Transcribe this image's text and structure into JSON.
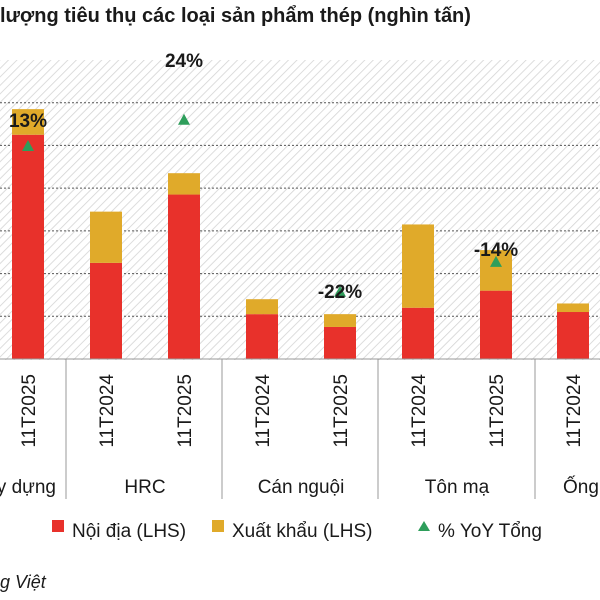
{
  "title": "lượng tiêu thụ các loại sản phẩm thép (nghìn tấn)",
  "source": "g Việt",
  "colors": {
    "domestic": "#e8312b",
    "export": "#e0aa2a",
    "yoy": "#2e9e5b",
    "hatch": "#d0d0d0",
    "grid": "#555555"
  },
  "chart_data": {
    "type": "bar",
    "stacked": true,
    "groups": [
      {
        "label": "y dựng",
        "categories": [
          "11T2025"
        ]
      },
      {
        "label": "HRC",
        "categories": [
          "11T2024",
          "11T2025"
        ]
      },
      {
        "label": "Cán nguội",
        "categories": [
          "11T2024",
          "11T2025"
        ]
      },
      {
        "label": "Tôn mạ",
        "categories": [
          "11T2024",
          "11T2025"
        ]
      },
      {
        "label": "Ống",
        "categories": [
          "11T2024"
        ]
      }
    ],
    "categories": [
      "11T2025",
      "11T2024",
      "11T2025",
      "11T2024",
      "11T2025",
      "11T2024",
      "11T2025",
      "11T2024"
    ],
    "series": [
      {
        "name": "Nội địa (LHS)",
        "values": [
          10500,
          4500,
          7700,
          2100,
          1500,
          2400,
          3200,
          2200
        ]
      },
      {
        "name": "Xuất khẩu (LHS)",
        "values": [
          1200,
          2400,
          1000,
          700,
          600,
          3900,
          1900,
          400
        ]
      }
    ],
    "yoy": {
      "name": "% YoY Tổng",
      "values": [
        null,
        null,
        0.24,
        null,
        -0.22,
        null,
        -0.14,
        null
      ],
      "labels": [
        "13%",
        "",
        "24%",
        "",
        "-22%",
        "",
        "-14%",
        ""
      ]
    },
    "ylim": [
      0,
      14000
    ],
    "grid_step": 2000,
    "legend_position": "bottom",
    "background": "hatched"
  },
  "legend": [
    {
      "name": "Nội địa (LHS)",
      "marker": "square",
      "color": "#e8312b"
    },
    {
      "name": "Xuất khẩu (LHS)",
      "marker": "square",
      "color": "#e0aa2a"
    },
    {
      "name": "% YoY Tổng",
      "marker": "triangle",
      "color": "#2e9e5b"
    }
  ]
}
